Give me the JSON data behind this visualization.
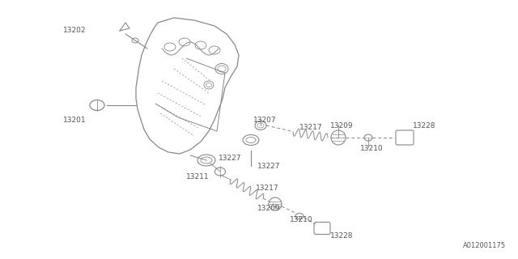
{
  "background_color": "#ffffff",
  "line_color": "#888888",
  "text_color": "#555555",
  "font_size": 6.5,
  "watermark": "A012001175"
}
